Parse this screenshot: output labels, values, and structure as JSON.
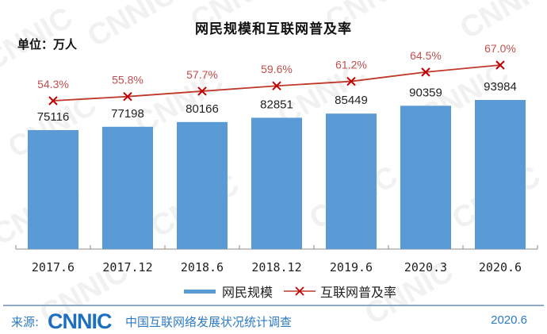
{
  "header": {
    "title": "网民规模和互联网普及率",
    "unit": "单位：万人"
  },
  "legend": {
    "bar_label": "网民规模",
    "line_label": "互联网普及率"
  },
  "footer": {
    "source_label": "来源:",
    "logo_text": "CNNIC",
    "organization": "中国互联网络发展状况统计调查",
    "date": "2020.6"
  },
  "colors": {
    "bar": "#5b9bd5",
    "line": "#c0392b",
    "marker": "#c00000",
    "label_line": "#c0504d",
    "accent_blue": "#2f7bc1"
  },
  "chart_data": {
    "type": "bar",
    "title": "网民规模和互联网普及率",
    "unit": "单位：万人",
    "categories": [
      "2017.6",
      "2017.12",
      "2018.6",
      "2018.12",
      "2019.6",
      "2020.3",
      "2020.6"
    ],
    "series": [
      {
        "name": "网民规模",
        "type": "bar",
        "values": [
          75116,
          77198,
          80166,
          82851,
          85449,
          90359,
          93984
        ],
        "labels": [
          "75116",
          "77198",
          "80166",
          "82851",
          "85449",
          "90359",
          "93984"
        ]
      },
      {
        "name": "互联网普及率",
        "type": "line",
        "values": [
          54.3,
          55.8,
          57.7,
          59.6,
          61.2,
          64.5,
          67.0
        ],
        "labels": [
          "54.3%",
          "55.8%",
          "57.7%",
          "59.6%",
          "61.2%",
          "64.5%",
          "67.0%"
        ]
      }
    ],
    "xlabel": "",
    "ylabel": "",
    "grid": false,
    "legend_position": "bottom"
  }
}
